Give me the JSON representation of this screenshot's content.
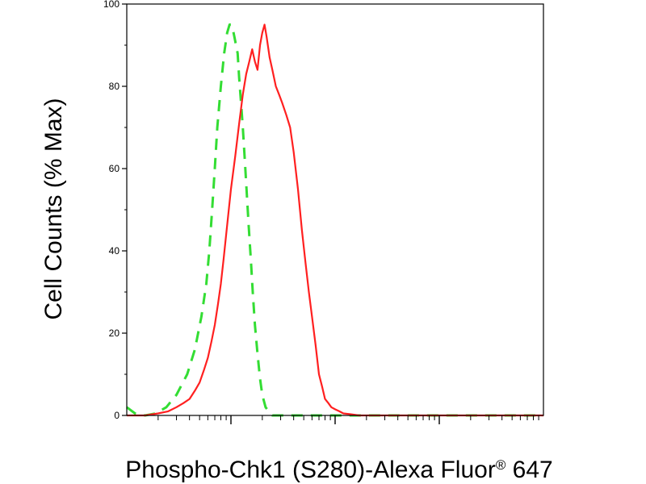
{
  "chart_data": {
    "type": "line",
    "title": "",
    "xlabel": "Phospho-Chk1 (S280)-Alexa Fluor",
    "xlabel_registered": "®",
    "xlabel_suffix": " 647",
    "ylabel": "Cell Counts (% Max)",
    "x_scale": "log",
    "xlim": [
      10,
      100000
    ],
    "ylim": [
      0,
      100
    ],
    "y_ticks": [
      0,
      20,
      40,
      60,
      80,
      100
    ],
    "y_tick_labels": [
      "0",
      "20",
      "40",
      "60",
      "80",
      "100"
    ],
    "x_major_ticks": [
      100,
      1000,
      10000
    ],
    "x_tick_labels": [
      "",
      "",
      ""
    ],
    "grid": false,
    "series": [
      {
        "style": "dashed",
        "color": "#33dd33",
        "x": [
          10,
          12,
          15,
          19,
          24,
          30,
          38,
          45,
          52,
          58,
          62,
          66,
          70,
          74,
          80,
          86,
          92,
          97,
          100,
          104,
          108,
          112,
          116,
          120,
          125,
          130,
          136,
          142,
          148,
          155,
          162,
          170,
          180,
          190,
          200,
          215,
          230,
          250,
          280,
          320,
          400,
          600,
          1000,
          3000,
          10000,
          100000
        ],
        "y": [
          2,
          0.5,
          0,
          0.5,
          2,
          5,
          10,
          16,
          24,
          32,
          40,
          50,
          60,
          70,
          80,
          88,
          93,
          95,
          95,
          94,
          92,
          90,
          88,
          82,
          76,
          70,
          62,
          54,
          46,
          38,
          30,
          22,
          15,
          9,
          5,
          2,
          1,
          0,
          0,
          0,
          0,
          0,
          0,
          0,
          0,
          0
        ]
      },
      {
        "style": "solid",
        "color": "#ff2020",
        "x": [
          10,
          15,
          20,
          25,
          30,
          35,
          40,
          45,
          50,
          55,
          60,
          65,
          70,
          75,
          80,
          85,
          90,
          100,
          110,
          120,
          130,
          140,
          150,
          160,
          170,
          180,
          190,
          200,
          210,
          220,
          235,
          250,
          270,
          290,
          310,
          340,
          370,
          400,
          440,
          480,
          520,
          560,
          600,
          650,
          700,
          750,
          800,
          860,
          920,
          1000,
          1100,
          1200,
          1400,
          1700,
          2000,
          3000,
          5000,
          10000,
          30000,
          100000
        ],
        "y": [
          0,
          0,
          0.5,
          1,
          2,
          3,
          4,
          6,
          8,
          11,
          14,
          18,
          22,
          27,
          32,
          38,
          44,
          55,
          63,
          71,
          78,
          83,
          86,
          89,
          86,
          84,
          90,
          93,
          95,
          92,
          87,
          84,
          80,
          78,
          76,
          73,
          70,
          64,
          55,
          45,
          37,
          30,
          24,
          17,
          10,
          7,
          4,
          3,
          2,
          1.5,
          1,
          0.5,
          0.3,
          0,
          0,
          0,
          0,
          0,
          0,
          0
        ]
      }
    ]
  }
}
